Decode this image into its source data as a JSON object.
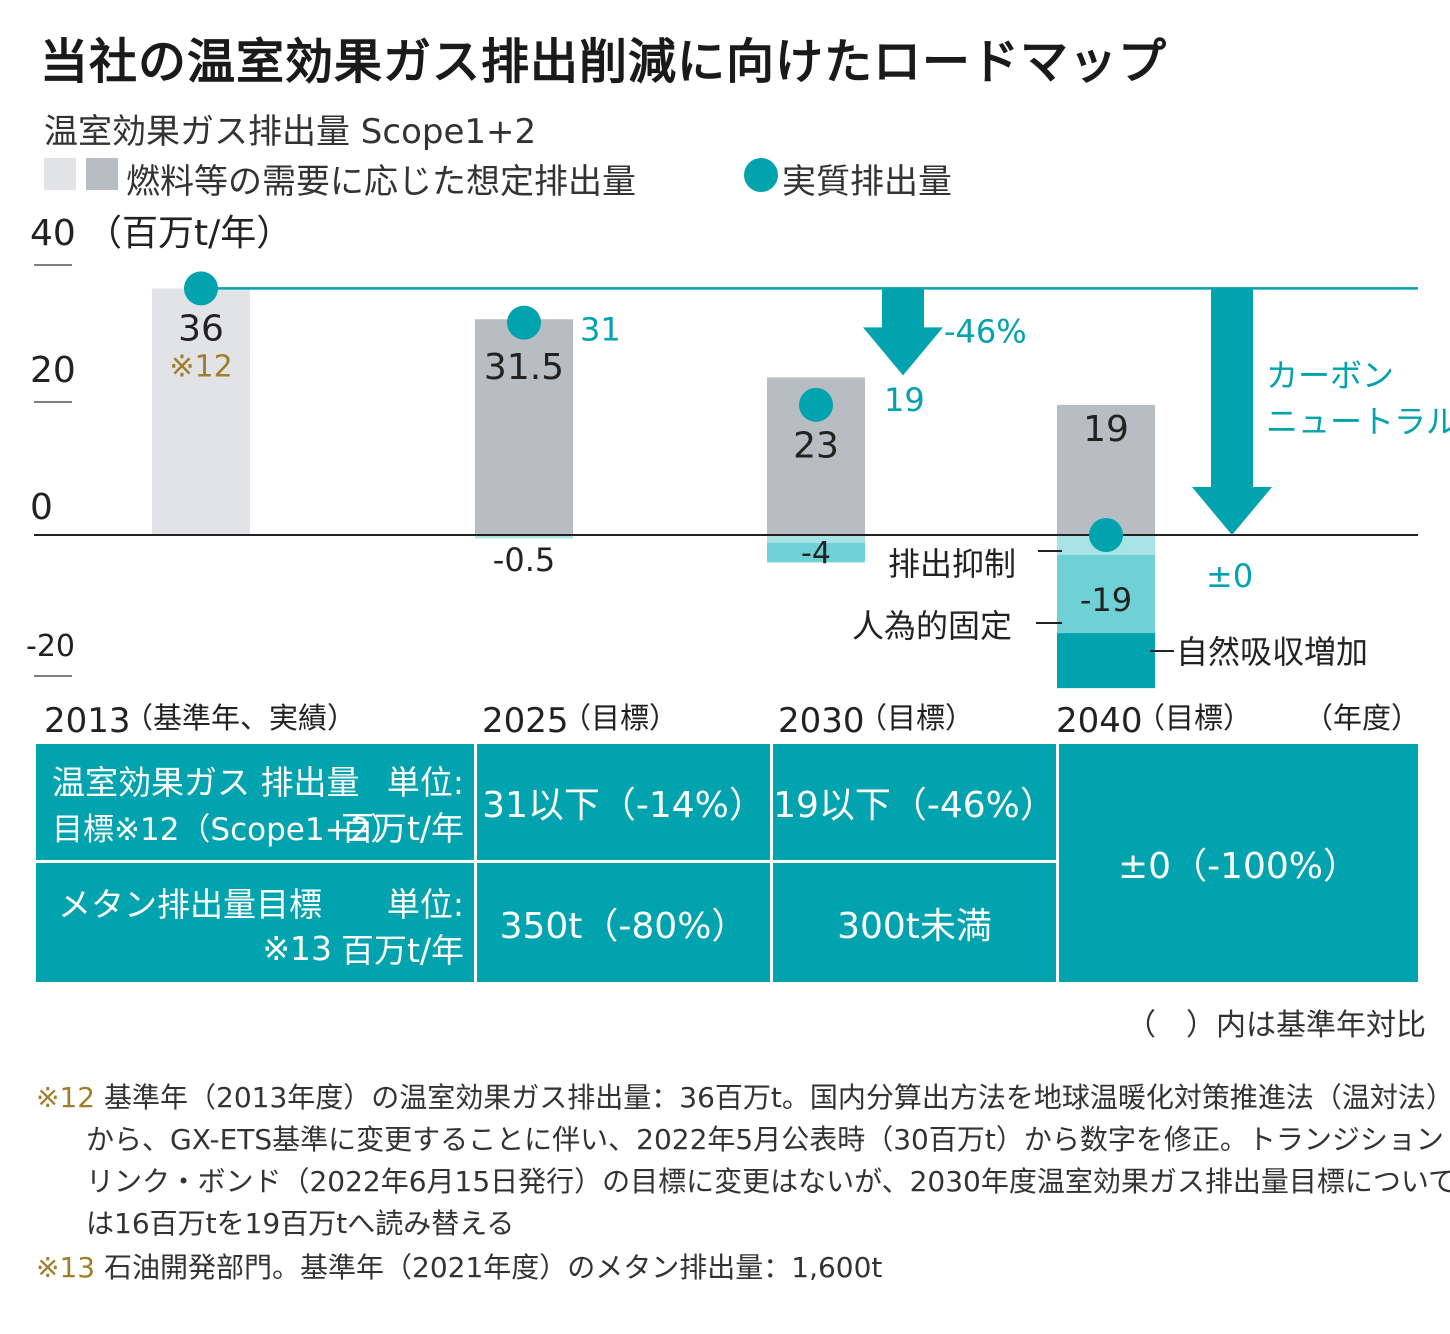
{
  "title": "当社の温室効果ガス排出削減に向けたロードマップ",
  "subtitle": "温室効果ガス排出量 Scope1+2",
  "legend": {
    "assumed_label": "燃料等の需要に応じた想定排出量",
    "actual_label": "実質排出量"
  },
  "colors": {
    "teal": "#00a3ae",
    "light_teal": "#6fd1d6",
    "pale_teal": "#a8e3e6",
    "bar_light": "#e1e3e6",
    "bar_gray": "#b8bcc3",
    "gold": "#a07e2d"
  },
  "chart_data": {
    "type": "bar",
    "unit": "（百万t/年）",
    "y_ticks": [
      "40",
      "20",
      "0",
      "-20"
    ],
    "ylim": [
      -20,
      40
    ],
    "categories": [
      "2013",
      "2025",
      "2030",
      "2040"
    ],
    "assumed": [
      36,
      31.5,
      23,
      19
    ],
    "assumed_labels": [
      "36",
      "31.5",
      "23",
      "19"
    ],
    "base_note": "※12",
    "reductions": {
      "2025": {
        "value": -0.5,
        "label": "-0.5"
      },
      "2030": {
        "value": -4,
        "label": "-4"
      },
      "2040": {
        "value": -19,
        "label": "-19"
      }
    },
    "actual": [
      36,
      31,
      19,
      0
    ],
    "actual_labels": [
      "",
      "31",
      "19",
      "±0"
    ],
    "arrow_labels": {
      "a2030": "-46%",
      "a2040_line1": "カーボン",
      "a2040_line2": "ニュートラル"
    },
    "annotations": {
      "suppress": "排出抑制",
      "artificial": "人為的固定",
      "natural": "自然吸収増加"
    }
  },
  "x_labels": [
    {
      "year": "2013",
      "note": "（基準年、実績）"
    },
    {
      "year": "2025",
      "note": "（目標）"
    },
    {
      "year": "2030",
      "note": "（目標）"
    },
    {
      "year": "2040",
      "note": "（目標）"
    }
  ],
  "x_unit": "（年度）",
  "table": {
    "row1_label_l1": "温室効果ガス 排出量",
    "row1_label_l2": "目標※12（Scope1+2）",
    "row2_label_l1": "メタン排出量目標",
    "row2_label_l2": "※13",
    "unit_l1": "単位:",
    "unit_l2": "百万t/年",
    "r1_2025": "31以下（-14%）",
    "r1_2030": "19以下（-46%）",
    "r2_2025": "350t（-80%）",
    "r2_2030": "300t未満",
    "r_2040": "±0（-100%）"
  },
  "table_note": "（　）内は基準年対比",
  "footnotes": {
    "n12_mark": "※12",
    "n12_l1": "基準年（2013年度）の温室効果ガス排出量：36百万t。国内分算出方法を地球温暖化対策推進法（温対法）",
    "n12_l2": "から、GX-ETS基準に変更することに伴い、2022年5月公表時（30百万t）から数字を修正。トランジション・",
    "n12_l3": "リンク・ボンド（2022年6月15日発行）の目標に変更はないが、2030年度温室効果ガス排出量目標について",
    "n12_l4": "は16百万tを19百万tへ読み替える",
    "n13_mark": "※13",
    "n13_l1": "石油開発部門。基準年（2021年度）のメタン排出量：1,600t"
  }
}
